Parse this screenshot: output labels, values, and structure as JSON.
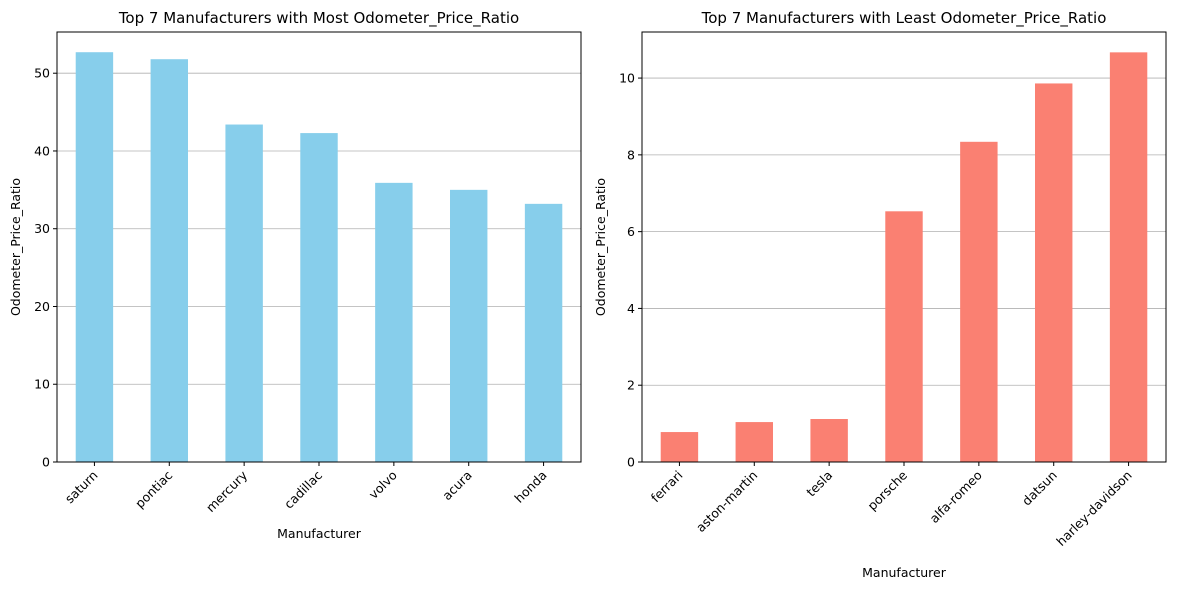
{
  "chart_data": [
    {
      "type": "bar",
      "title": "Top 7 Manufacturers with Most Odometer_Price_Ratio",
      "xlabel": "Manufacturer",
      "ylabel": "Odometer_Price_Ratio",
      "categories": [
        "saturn",
        "pontiac",
        "mercury",
        "cadillac",
        "volvo",
        "acura",
        "honda"
      ],
      "values": [
        52.7,
        51.8,
        43.4,
        42.3,
        35.9,
        35.0,
        33.2
      ],
      "ylim": [
        0,
        55.3
      ],
      "yticks": [
        0,
        10,
        20,
        30,
        40,
        50
      ],
      "grid": "y",
      "color": "#87ceeb",
      "tick_rotation": 45
    },
    {
      "type": "bar",
      "title": "Top 7 Manufacturers with Least Odometer_Price_Ratio",
      "xlabel": "Manufacturer",
      "ylabel": "Odometer_Price_Ratio",
      "categories": [
        "ferrari",
        "aston-martin",
        "tesla",
        "porsche",
        "alfa-romeo",
        "datsun",
        "harley-davidson"
      ],
      "values": [
        0.78,
        1.04,
        1.12,
        6.53,
        8.34,
        9.86,
        10.67
      ],
      "ylim": [
        0,
        11.2
      ],
      "yticks": [
        0,
        2,
        4,
        6,
        8,
        10
      ],
      "grid": "y",
      "color": "#fa8072",
      "tick_rotation": 45
    }
  ]
}
